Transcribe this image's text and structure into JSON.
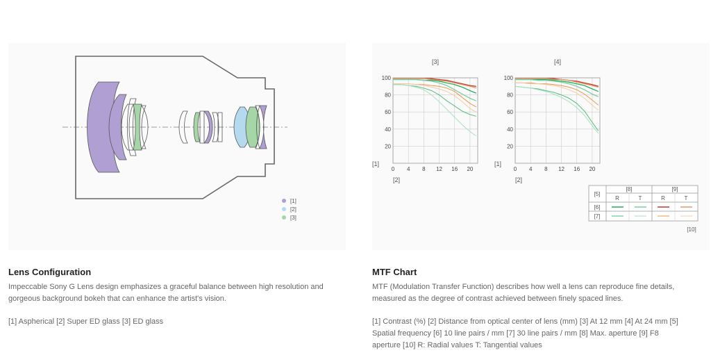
{
  "lens": {
    "heading": "Lens Configuration",
    "description": "Impeccable Sony G Lens design emphasizes a graceful balance between high resolution and gorgeous background bokeh that can enhance the artist's vision.",
    "legend_note": "[1] Aspherical [2] Super ED glass [3] ED glass",
    "legend": [
      {
        "label": "[1]",
        "color": "#b09fd2"
      },
      {
        "label": "[2]",
        "color": "#b5daf0"
      },
      {
        "label": "[3]",
        "color": "#a6d5a7"
      }
    ]
  },
  "mtf": {
    "heading": "MTF Chart",
    "description": "MTF (Modulation Transfer Function) describes how well a lens can reproduce fine details, measured as the degree of contrast achieved between finely spaced lines.",
    "notes": "[1] Contrast (%) [2] Distance from optical center of lens (mm) [3] At 12 mm [4] At 24 mm [5] Spatial frequency [6] 10 line pairs / mm [7] 30 line pairs / mm [8] Max. aperture [9] F8 aperture [10] R: Radial values T: Tangential values",
    "y_axis_label": "[1]",
    "x_axis_label": "[2]",
    "table": {
      "corner": "[5]",
      "groups": [
        "[8]",
        "[9]"
      ],
      "cols": [
        "R",
        "T",
        "R",
        "T"
      ],
      "rows": [
        "[6]",
        "[7]"
      ]
    },
    "footnote": "[10]"
  },
  "chart_data": [
    {
      "type": "line",
      "title": "[3]",
      "xlabel": "[2]",
      "ylabel": "[1]",
      "xlim": [
        0,
        22
      ],
      "ylim": [
        0,
        100
      ],
      "x_ticks": [
        0,
        4,
        8,
        12,
        16,
        20
      ],
      "y_ticks": [
        20,
        40,
        60,
        80,
        100
      ],
      "grid": true,
      "x": [
        0,
        2,
        4,
        6,
        8,
        10,
        12,
        14,
        16,
        18,
        20,
        21.6
      ],
      "series": [
        {
          "color": "#c0392b",
          "values": [
            99,
            99,
            99,
            99,
            99,
            99,
            98,
            97,
            95,
            93,
            91,
            90
          ]
        },
        {
          "color": "#e59866",
          "values": [
            99,
            99,
            99,
            99,
            99,
            98,
            97,
            96,
            94,
            92,
            90,
            88
          ]
        },
        {
          "color": "#27ae60",
          "values": [
            98,
            98,
            98,
            98,
            97,
            97,
            96,
            94,
            92,
            89,
            85,
            82
          ]
        },
        {
          "color": "#7dcea0",
          "values": [
            98,
            98,
            98,
            98,
            97,
            96,
            94,
            91,
            86,
            81,
            76,
            73
          ]
        },
        {
          "color": "#eb984e",
          "values": [
            93,
            93,
            93,
            92,
            92,
            91,
            90,
            88,
            84,
            77,
            70,
            66
          ]
        },
        {
          "color": "#f5cba7",
          "values": [
            93,
            93,
            93,
            92,
            91,
            89,
            87,
            84,
            79,
            72,
            64,
            60
          ]
        },
        {
          "color": "#52be80",
          "values": [
            92,
            92,
            91,
            90,
            88,
            85,
            80,
            73,
            67,
            61,
            57,
            55
          ]
        },
        {
          "color": "#a9dfbf",
          "values": [
            92,
            92,
            91,
            89,
            86,
            80,
            72,
            63,
            54,
            45,
            37,
            32
          ]
        }
      ]
    },
    {
      "type": "line",
      "title": "[4]",
      "xlabel": "[2]",
      "ylabel": "[1]",
      "xlim": [
        0,
        22
      ],
      "ylim": [
        0,
        100
      ],
      "x_ticks": [
        0,
        4,
        8,
        12,
        16,
        20
      ],
      "y_ticks": [
        20,
        40,
        60,
        80,
        100
      ],
      "grid": true,
      "x": [
        0,
        2,
        4,
        6,
        8,
        10,
        12,
        14,
        16,
        18,
        20,
        21.6
      ],
      "series": [
        {
          "color": "#c0392b",
          "values": [
            99,
            99,
            99,
            99,
            99,
            99,
            98,
            97,
            96,
            94,
            92,
            90
          ]
        },
        {
          "color": "#e59866",
          "values": [
            99,
            99,
            99,
            99,
            99,
            98,
            98,
            97,
            95,
            93,
            91,
            89
          ]
        },
        {
          "color": "#27ae60",
          "values": [
            98,
            98,
            98,
            98,
            98,
            97,
            96,
            95,
            93,
            91,
            87,
            84
          ]
        },
        {
          "color": "#7dcea0",
          "values": [
            98,
            98,
            98,
            97,
            97,
            96,
            95,
            93,
            90,
            86,
            81,
            78
          ]
        },
        {
          "color": "#eb984e",
          "values": [
            94,
            94,
            94,
            93,
            93,
            92,
            91,
            89,
            86,
            81,
            74,
            68
          ]
        },
        {
          "color": "#f5cba7",
          "values": [
            94,
            94,
            93,
            93,
            92,
            91,
            89,
            86,
            82,
            76,
            68,
            62
          ]
        },
        {
          "color": "#52be80",
          "values": [
            90,
            89,
            88,
            87,
            85,
            83,
            80,
            76,
            70,
            61,
            48,
            38
          ]
        },
        {
          "color": "#a9dfbf",
          "values": [
            90,
            89,
            88,
            86,
            84,
            81,
            77,
            72,
            65,
            56,
            44,
            35
          ]
        }
      ]
    }
  ]
}
